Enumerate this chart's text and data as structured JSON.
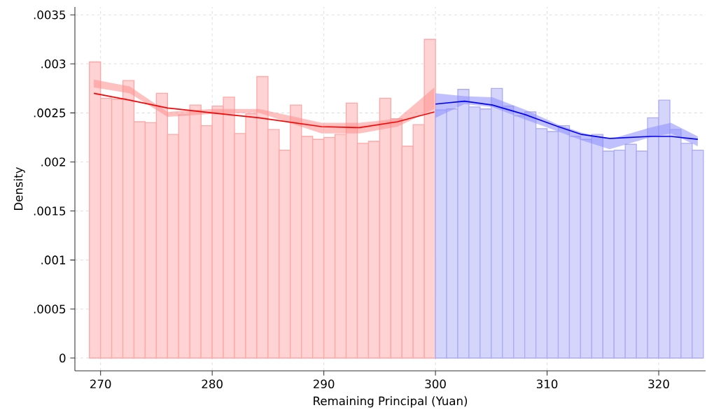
{
  "chart_data": {
    "type": "histogram",
    "xlabel": "Remaining Principal (Yuan)",
    "ylabel": "Density",
    "xlim": [
      267.7,
      324.2
    ],
    "ylim": [
      -0.00013,
      0.00358
    ],
    "xticks": [
      270,
      280,
      290,
      300,
      310,
      320
    ],
    "yticks": [
      {
        "value": 0,
        "label": "0"
      },
      {
        "value": 0.0005,
        "label": ".0005"
      },
      {
        "value": 0.001,
        "label": ".001"
      },
      {
        "value": 0.0015,
        "label": ".0015"
      },
      {
        "value": 0.002,
        "label": ".002"
      },
      {
        "value": 0.0025,
        "label": ".0025"
      },
      {
        "value": 0.003,
        "label": ".003"
      },
      {
        "value": 0.0035,
        "label": ".0035"
      }
    ],
    "grid": true,
    "series": [
      {
        "color": "#ffd3d3",
        "bins": [
          269,
          270,
          271,
          272,
          273,
          274,
          275,
          276,
          277,
          278,
          279,
          280,
          281,
          282,
          283,
          284,
          285,
          286,
          287,
          288,
          289,
          290,
          291,
          292,
          293,
          294,
          295,
          296,
          297,
          298,
          299,
          300
        ],
        "values": [
          0.00302,
          0.00265,
          0.00264,
          0.00283,
          0.00241,
          0.0024,
          0.0027,
          0.00228,
          0.00248,
          0.00258,
          0.00237,
          0.00257,
          0.00266,
          0.00229,
          0.00249,
          0.00287,
          0.00233,
          0.00212,
          0.00258,
          0.00226,
          0.00223,
          0.00225,
          0.00228,
          0.0026,
          0.00219,
          0.00221,
          0.00265,
          0.00244,
          0.00216,
          0.00238,
          0.00325
        ]
      },
      {
        "color": "#d5d5fb",
        "bins": [
          300,
          301,
          302,
          303,
          304,
          305,
          306,
          307,
          308,
          309,
          310,
          311,
          312,
          313,
          314,
          315,
          316,
          317,
          318,
          319,
          320,
          321,
          322,
          323,
          324
        ],
        "values": [
          0.00253,
          0.00254,
          0.00274,
          0.00256,
          0.00254,
          0.00275,
          0.00257,
          0.00247,
          0.00251,
          0.00234,
          0.00231,
          0.00237,
          0.00226,
          0.00223,
          0.00228,
          0.00211,
          0.00212,
          0.00218,
          0.00211,
          0.00245,
          0.00263,
          0.00233,
          0.00219,
          0.00212
        ]
      },
      {
        "type": "line",
        "color": "#ff0000",
        "x": [
          269.4,
          272.6,
          276.0,
          280.0,
          284.2,
          289.8,
          293.2,
          296.6,
          299.9
        ],
        "values": [
          0.0027,
          0.00263,
          0.00255,
          0.0025,
          0.00245,
          0.00236,
          0.00235,
          0.00241,
          0.00251
        ],
        "lower": [
          0.00276,
          0.0027,
          0.00246,
          0.00249,
          0.0025,
          0.00229,
          0.00229,
          0.00236,
          0.00254
        ],
        "upper": [
          0.00284,
          0.00277,
          0.00251,
          0.00254,
          0.00254,
          0.0024,
          0.0024,
          0.00244,
          0.00276
        ]
      },
      {
        "type": "line",
        "color": "#0000ff",
        "x": [
          300.0,
          302.6,
          305.1,
          308.1,
          311.0,
          313.1,
          315.6,
          319.2,
          321.1,
          323.5
        ],
        "values": [
          0.00259,
          0.00262,
          0.00258,
          0.00248,
          0.00236,
          0.00228,
          0.00224,
          0.00226,
          0.00226,
          0.00223
        ],
        "lower": [
          0.00245,
          0.00259,
          0.00256,
          0.00243,
          0.00231,
          0.00222,
          0.00213,
          0.00225,
          0.00229,
          0.00216
        ],
        "upper": [
          0.0027,
          0.00267,
          0.00266,
          0.00253,
          0.00238,
          0.0023,
          0.00223,
          0.00235,
          0.0024,
          0.00226
        ]
      }
    ]
  }
}
